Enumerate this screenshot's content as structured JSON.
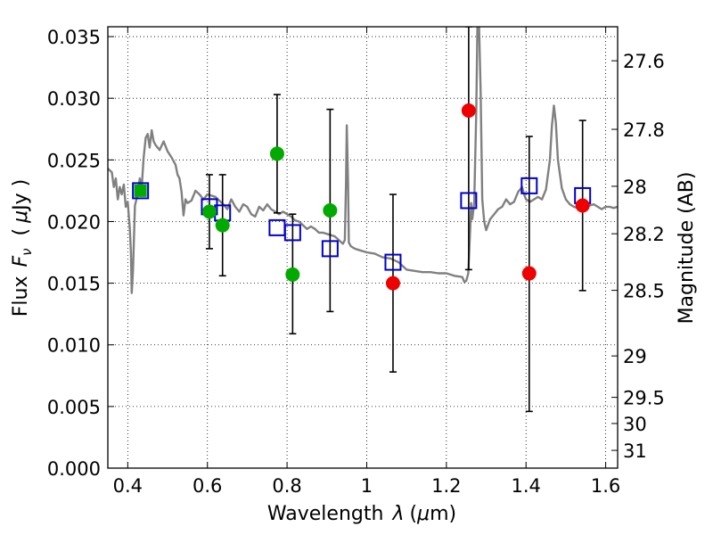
{
  "chart_data": {
    "type": "scatter",
    "xlabel_main": "Wavelength",
    "xlabel_symbol": "λ",
    "xlabel_unit_open": "(",
    "xlabel_unit_mu": "μ",
    "xlabel_unit_rest": "m)",
    "ylabel_main": "Flux",
    "ylabel_symbol": "F",
    "ylabel_sub": "ν",
    "ylabel_unit_open": "(",
    "ylabel_unit_mu": "μ",
    "ylabel_unit_rest": "Jy )",
    "y2label": "Magnitude (AB)",
    "xlim": [
      0.35,
      1.63
    ],
    "ylim": [
      0.0,
      0.0358
    ],
    "grid": true,
    "xticks": [
      {
        "value": 0.4,
        "label": "0.4"
      },
      {
        "value": 0.6,
        "label": "0.6"
      },
      {
        "value": 0.8,
        "label": "0.8"
      },
      {
        "value": 1.0,
        "label": "1"
      },
      {
        "value": 1.2,
        "label": "1.2"
      },
      {
        "value": 1.4,
        "label": "1.4"
      },
      {
        "value": 1.6,
        "label": "1.6"
      }
    ],
    "yticks": [
      {
        "value": 0.0,
        "label": "0.000"
      },
      {
        "value": 0.005,
        "label": "0.005"
      },
      {
        "value": 0.01,
        "label": "0.010"
      },
      {
        "value": 0.015,
        "label": "0.015"
      },
      {
        "value": 0.02,
        "label": "0.020"
      },
      {
        "value": 0.025,
        "label": "0.025"
      },
      {
        "value": 0.03,
        "label": "0.030"
      },
      {
        "value": 0.035,
        "label": "0.035"
      }
    ],
    "y2ticks": [
      {
        "label": "27.6",
        "flux": 0.03304
      },
      {
        "label": "27.8",
        "flux": 0.02748
      },
      {
        "label": "28",
        "flux": 0.02286
      },
      {
        "label": "28.2",
        "flux": 0.01901
      },
      {
        "label": "28.5",
        "flux": 0.01442
      },
      {
        "label": "29",
        "flux": 0.0091
      },
      {
        "label": "29.5",
        "flux": 0.00574
      },
      {
        "label": "30",
        "flux": 0.00362
      },
      {
        "label": "31",
        "flux": 0.00144
      }
    ],
    "model_spectrum": {
      "color": "#808080",
      "points": [
        [
          0.35,
          0.0243
        ],
        [
          0.36,
          0.024
        ],
        [
          0.365,
          0.0228
        ],
        [
          0.37,
          0.0235
        ],
        [
          0.375,
          0.0218
        ],
        [
          0.38,
          0.0228
        ],
        [
          0.385,
          0.0222
        ],
        [
          0.39,
          0.023
        ],
        [
          0.395,
          0.0212
        ],
        [
          0.4,
          0.0216
        ],
        [
          0.405,
          0.0195
        ],
        [
          0.408,
          0.0175
        ],
        [
          0.41,
          0.0142
        ],
        [
          0.413,
          0.016
        ],
        [
          0.418,
          0.0213
        ],
        [
          0.425,
          0.0222
        ],
        [
          0.43,
          0.0235
        ],
        [
          0.435,
          0.0228
        ],
        [
          0.44,
          0.0252
        ],
        [
          0.445,
          0.0268
        ],
        [
          0.45,
          0.0271
        ],
        [
          0.455,
          0.026
        ],
        [
          0.46,
          0.0274
        ],
        [
          0.465,
          0.0265
        ],
        [
          0.47,
          0.0262
        ],
        [
          0.48,
          0.0258
        ],
        [
          0.49,
          0.0265
        ],
        [
          0.5,
          0.0257
        ],
        [
          0.51,
          0.0252
        ],
        [
          0.52,
          0.0246
        ],
        [
          0.525,
          0.0238
        ],
        [
          0.53,
          0.0235
        ],
        [
          0.535,
          0.0224
        ],
        [
          0.54,
          0.0205
        ],
        [
          0.545,
          0.0218
        ],
        [
          0.55,
          0.0215
        ],
        [
          0.56,
          0.0217
        ],
        [
          0.57,
          0.0225
        ],
        [
          0.58,
          0.0222
        ],
        [
          0.59,
          0.0218
        ],
        [
          0.6,
          0.0222
        ],
        [
          0.61,
          0.0221
        ],
        [
          0.62,
          0.022
        ],
        [
          0.63,
          0.0217
        ],
        [
          0.64,
          0.0214
        ],
        [
          0.65,
          0.021
        ],
        [
          0.66,
          0.0218
        ],
        [
          0.67,
          0.0212
        ],
        [
          0.68,
          0.0208
        ],
        [
          0.69,
          0.0214
        ],
        [
          0.7,
          0.0212
        ],
        [
          0.71,
          0.0206
        ],
        [
          0.72,
          0.0204
        ],
        [
          0.73,
          0.0212
        ],
        [
          0.74,
          0.0209
        ],
        [
          0.75,
          0.0214
        ],
        [
          0.76,
          0.021
        ],
        [
          0.77,
          0.0208
        ],
        [
          0.78,
          0.0206
        ],
        [
          0.79,
          0.0208
        ],
        [
          0.8,
          0.0206
        ],
        [
          0.81,
          0.0204
        ],
        [
          0.82,
          0.0201
        ],
        [
          0.83,
          0.02
        ],
        [
          0.84,
          0.0197
        ],
        [
          0.85,
          0.0194
        ],
        [
          0.86,
          0.0196
        ],
        [
          0.87,
          0.0194
        ],
        [
          0.88,
          0.0191
        ],
        [
          0.89,
          0.0191
        ],
        [
          0.9,
          0.019
        ],
        [
          0.91,
          0.0189
        ],
        [
          0.92,
          0.0188
        ],
        [
          0.93,
          0.0185
        ],
        [
          0.94,
          0.0182
        ],
        [
          0.945,
          0.0185
        ],
        [
          0.948,
          0.023
        ],
        [
          0.95,
          0.0278
        ],
        [
          0.953,
          0.0232
        ],
        [
          0.955,
          0.0183
        ],
        [
          0.96,
          0.018
        ],
        [
          0.97,
          0.0178
        ],
        [
          0.98,
          0.0177
        ],
        [
          1.0,
          0.0175
        ],
        [
          1.02,
          0.0174
        ],
        [
          1.04,
          0.0171
        ],
        [
          1.06,
          0.017
        ],
        [
          1.08,
          0.0167
        ],
        [
          1.1,
          0.0161
        ],
        [
          1.12,
          0.016
        ],
        [
          1.14,
          0.0159
        ],
        [
          1.16,
          0.0159
        ],
        [
          1.18,
          0.0158
        ],
        [
          1.2,
          0.0158
        ],
        [
          1.22,
          0.0156
        ],
        [
          1.24,
          0.0155
        ],
        [
          1.245,
          0.0151
        ],
        [
          1.25,
          0.0152
        ],
        [
          1.255,
          0.0158
        ],
        [
          1.26,
          0.0196
        ],
        [
          1.262,
          0.0215
        ],
        [
          1.265,
          0.0202
        ],
        [
          1.27,
          0.0215
        ],
        [
          1.275,
          0.029
        ],
        [
          1.278,
          0.036
        ],
        [
          1.282,
          0.036
        ],
        [
          1.286,
          0.0305
        ],
        [
          1.29,
          0.0218
        ],
        [
          1.295,
          0.02
        ],
        [
          1.3,
          0.0193
        ],
        [
          1.31,
          0.0202
        ],
        [
          1.32,
          0.0206
        ],
        [
          1.33,
          0.021
        ],
        [
          1.34,
          0.0212
        ],
        [
          1.35,
          0.0218
        ],
        [
          1.36,
          0.0214
        ],
        [
          1.37,
          0.0216
        ],
        [
          1.38,
          0.0224
        ],
        [
          1.39,
          0.0228
        ],
        [
          1.395,
          0.0222
        ],
        [
          1.4,
          0.0218
        ],
        [
          1.41,
          0.0216
        ],
        [
          1.42,
          0.0218
        ],
        [
          1.43,
          0.022
        ],
        [
          1.44,
          0.0218
        ],
        [
          1.45,
          0.0226
        ],
        [
          1.46,
          0.025
        ],
        [
          1.465,
          0.0278
        ],
        [
          1.47,
          0.0294
        ],
        [
          1.475,
          0.028
        ],
        [
          1.48,
          0.025
        ],
        [
          1.49,
          0.0227
        ],
        [
          1.5,
          0.0218
        ],
        [
          1.51,
          0.0214
        ],
        [
          1.52,
          0.0212
        ],
        [
          1.53,
          0.0211
        ],
        [
          1.54,
          0.0212
        ],
        [
          1.55,
          0.0212
        ],
        [
          1.56,
          0.0213
        ],
        [
          1.57,
          0.0214
        ],
        [
          1.58,
          0.0212
        ],
        [
          1.59,
          0.021
        ],
        [
          1.6,
          0.0212
        ],
        [
          1.61,
          0.0212
        ],
        [
          1.62,
          0.0211
        ],
        [
          1.63,
          0.0212
        ]
      ]
    },
    "model_photometry": {
      "marker": "open-square",
      "color": "#0000cc",
      "points": [
        {
          "x": 0.432,
          "y": 0.0225
        },
        {
          "x": 0.605,
          "y": 0.0212
        },
        {
          "x": 0.638,
          "y": 0.0207
        },
        {
          "x": 0.775,
          "y": 0.0195
        },
        {
          "x": 0.814,
          "y": 0.0191
        },
        {
          "x": 0.908,
          "y": 0.0178
        },
        {
          "x": 1.066,
          "y": 0.0167
        },
        {
          "x": 1.256,
          "y": 0.0217
        },
        {
          "x": 1.408,
          "y": 0.0229
        },
        {
          "x": 1.542,
          "y": 0.0221
        }
      ]
    },
    "observed_green": {
      "color": "#00aa00",
      "points": [
        {
          "x": 0.432,
          "y": 0.0225
        },
        {
          "x": 0.605,
          "y": 0.0208,
          "err_lo": 0.0178,
          "err_hi": 0.0238
        },
        {
          "x": 0.638,
          "y": 0.0197,
          "err_lo": 0.0156,
          "err_hi": 0.0238
        },
        {
          "x": 0.775,
          "y": 0.0255,
          "err_lo": 0.0207,
          "err_hi": 0.0303
        },
        {
          "x": 0.814,
          "y": 0.0157,
          "err_lo": 0.0109,
          "err_hi": 0.0206
        },
        {
          "x": 0.908,
          "y": 0.0209,
          "err_lo": 0.0127,
          "err_hi": 0.0291
        }
      ]
    },
    "observed_red": {
      "color": "#ee0000",
      "points": [
        {
          "x": 1.066,
          "y": 0.015,
          "err_lo": 0.0078,
          "err_hi": 0.0222
        },
        {
          "x": 1.256,
          "y": 0.029,
          "err_lo": 0.0161,
          "err_hi": 0.0358
        },
        {
          "x": 1.408,
          "y": 0.0158,
          "err_lo": 0.0046,
          "err_hi": 0.0269
        },
        {
          "x": 1.542,
          "y": 0.0213,
          "err_lo": 0.0144,
          "err_hi": 0.0282
        }
      ]
    }
  }
}
